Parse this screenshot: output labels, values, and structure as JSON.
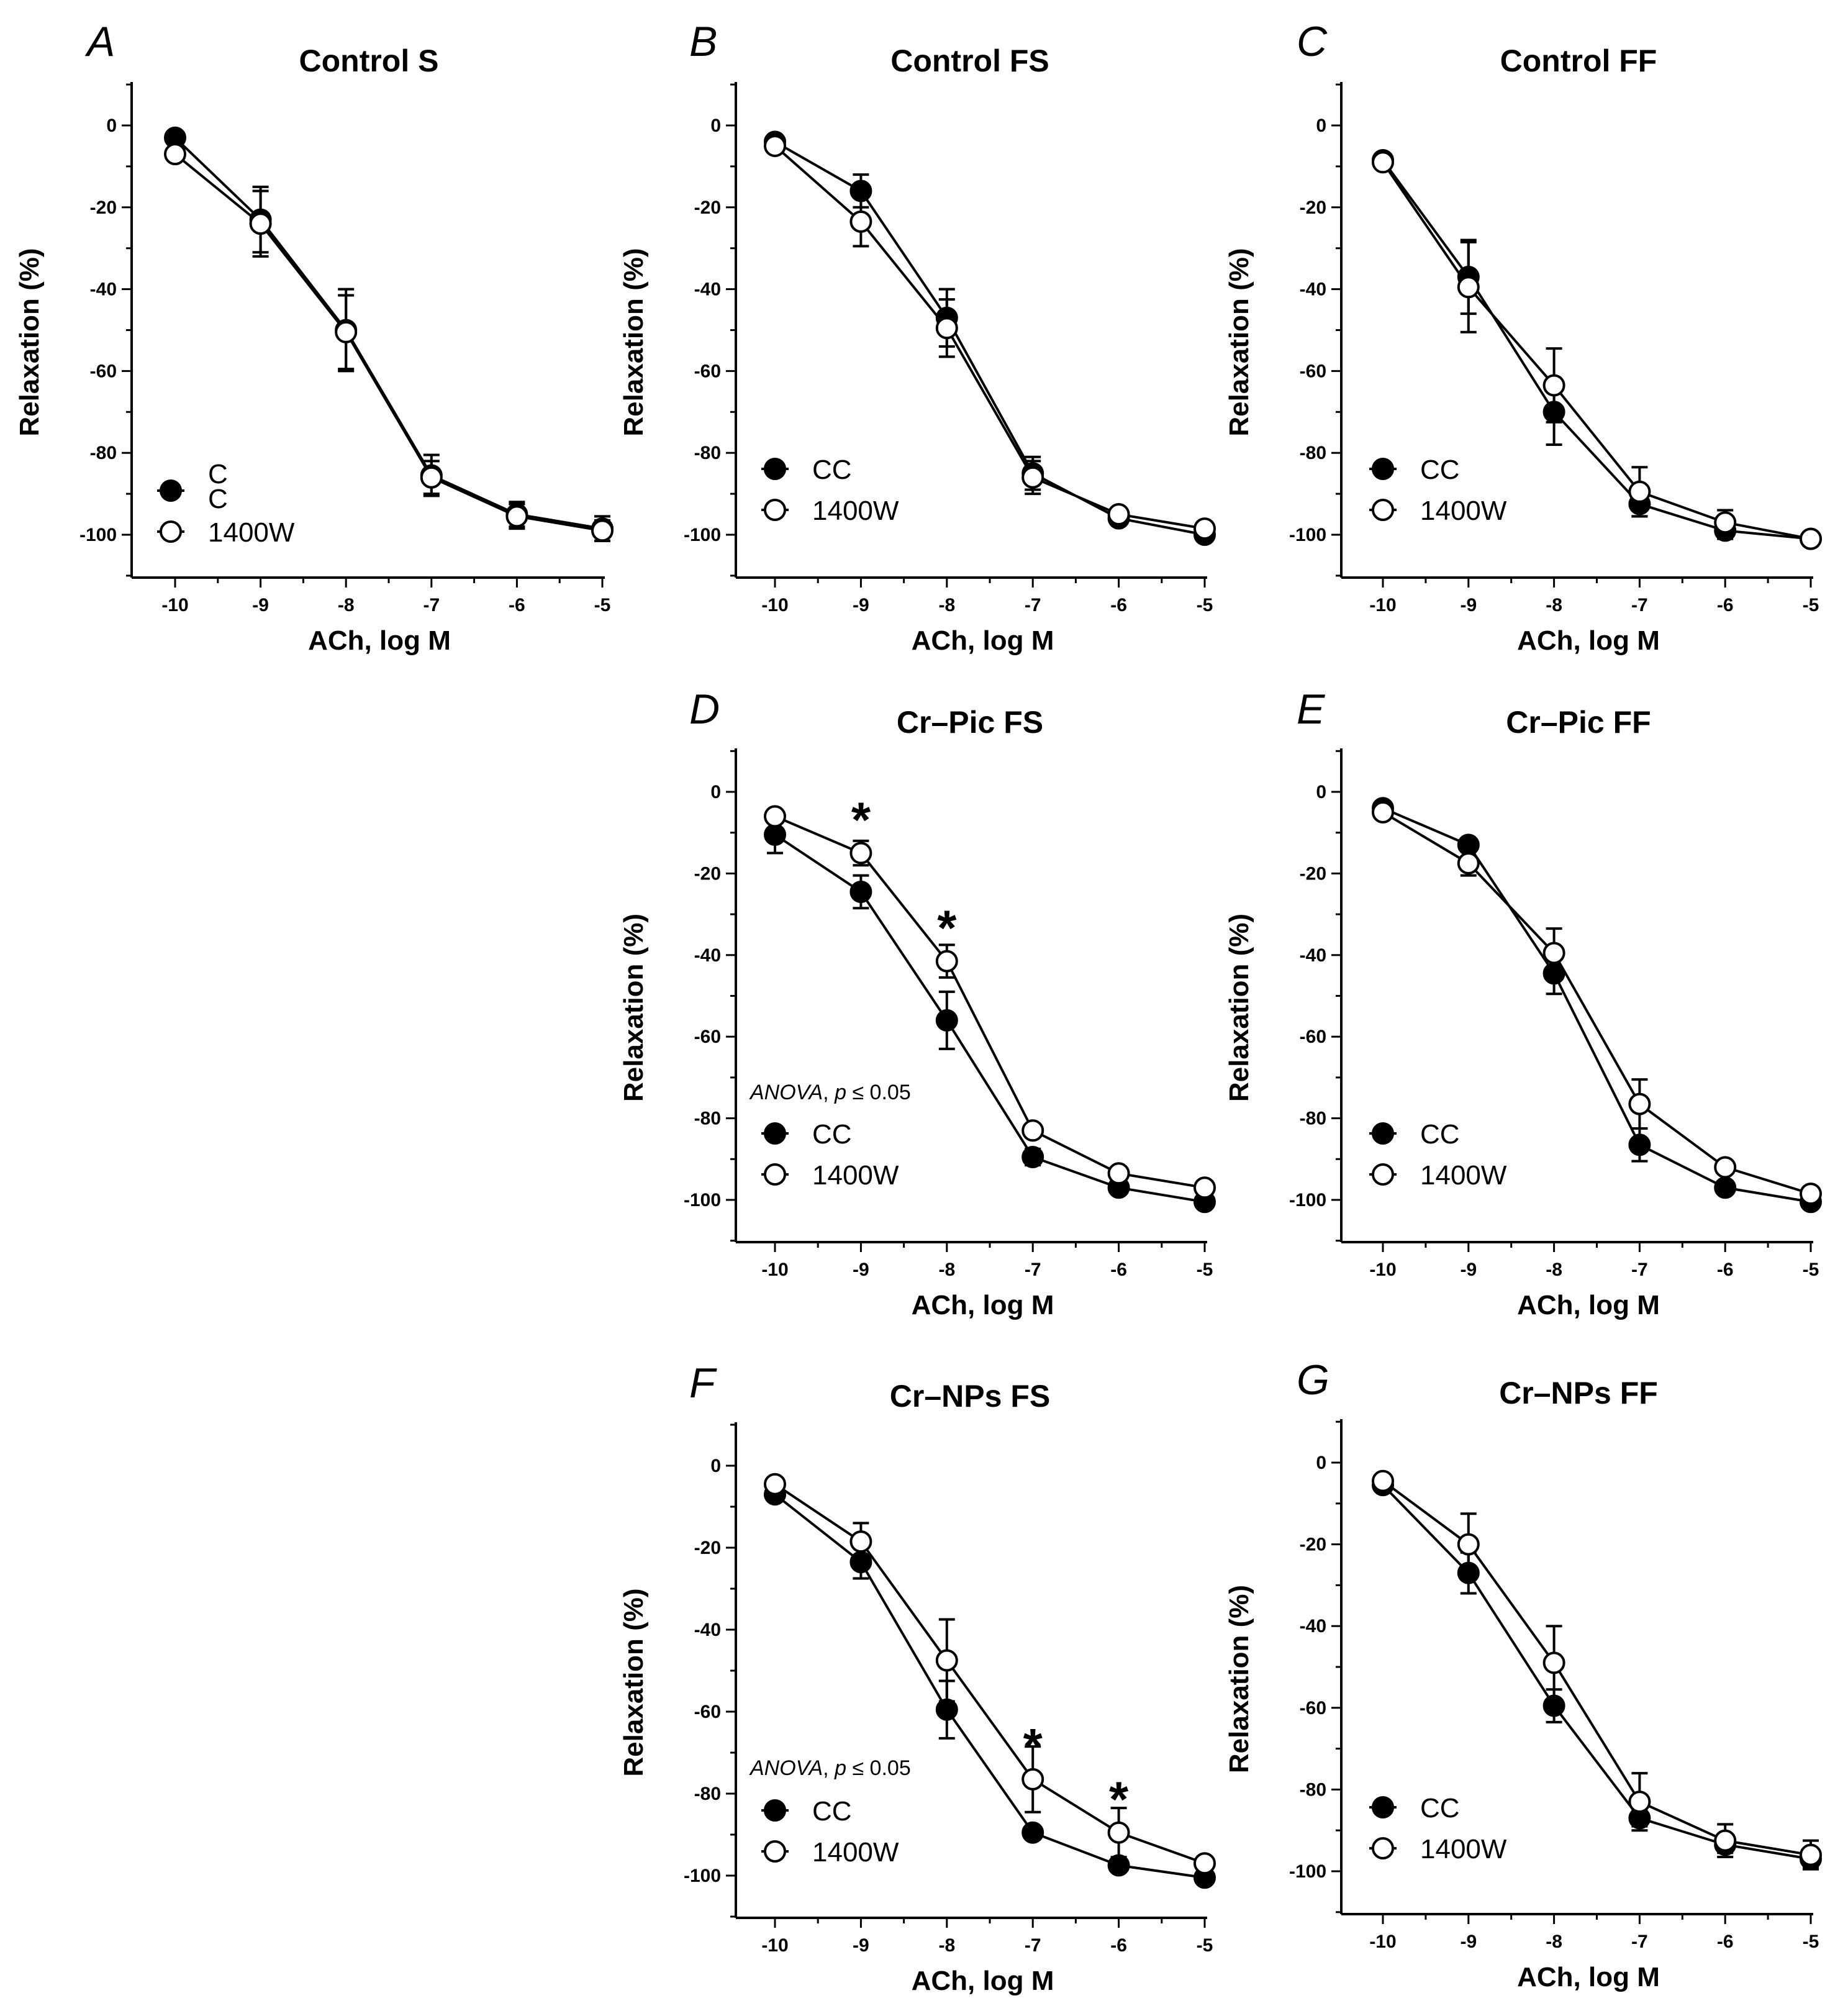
{
  "figure": {
    "colors": {
      "ink": "#000000",
      "open_fill": "#ffffff"
    }
  },
  "chart_data": [
    {
      "id": "A",
      "letter": "A",
      "title": "Control S",
      "type": "line",
      "xlabel": "ACh, log M",
      "ylabel": "Relaxation (%)",
      "x": [
        -10,
        -9,
        -8,
        -7,
        -6,
        -5
      ],
      "xticks": [
        "-10",
        "-9",
        "-8",
        "-7",
        "-6",
        "-5"
      ],
      "yticks": [
        "0",
        "-20",
        "-40",
        "-60",
        "-80",
        "-100"
      ],
      "ylim": [
        -110,
        10
      ],
      "series": [
        {
          "name": "C\nC",
          "label_lines": [
            "C",
            "C"
          ],
          "marker": "filled",
          "values": [
            -3,
            -23,
            -50,
            -85.5,
            -95,
            -98.5
          ],
          "error": [
            0,
            8,
            10,
            5,
            3,
            3
          ]
        },
        {
          "name": "1400W",
          "marker": "open",
          "values": [
            -7,
            -24,
            -50.5,
            -86,
            -95.5,
            -99
          ],
          "error": [
            0,
            8,
            9,
            4,
            3,
            2.5
          ]
        }
      ],
      "legend_position": "bottom-left"
    },
    {
      "id": "B",
      "letter": "B",
      "title": "Control FS",
      "type": "line",
      "xlabel": "ACh, log M",
      "ylabel": "Relaxation (%)",
      "x": [
        -10,
        -9,
        -8,
        -7,
        -6,
        -5
      ],
      "xticks": [
        "-10",
        "-9",
        "-8",
        "-7",
        "-6",
        "-5"
      ],
      "yticks": [
        "0",
        "-20",
        "-40",
        "-60",
        "-80",
        "-100"
      ],
      "ylim": [
        -110,
        10
      ],
      "series": [
        {
          "name": "CC",
          "marker": "filled",
          "values": [
            -4,
            -16,
            -47,
            -85,
            -96,
            -100
          ],
          "error": [
            0,
            4,
            7,
            4,
            1,
            1
          ]
        },
        {
          "name": "1400W",
          "marker": "open",
          "values": [
            -5,
            -23.5,
            -49.5,
            -86,
            -95,
            -98.5
          ],
          "error": [
            0,
            6,
            7,
            4,
            1.5,
            1.5
          ]
        }
      ],
      "legend_position": "bottom-left"
    },
    {
      "id": "C",
      "letter": "C",
      "title": "Control FF",
      "type": "line",
      "xlabel": "ACh, log M",
      "ylabel": "Relaxation (%)",
      "x": [
        -10,
        -9,
        -8,
        -7,
        -6,
        -5
      ],
      "xticks": [
        "-10",
        "-9",
        "-8",
        "-7",
        "-6",
        "-5"
      ],
      "yticks": [
        "0",
        "-20",
        "-40",
        "-60",
        "-80",
        "-100"
      ],
      "ylim": [
        -110,
        10
      ],
      "series": [
        {
          "name": "CC",
          "marker": "filled",
          "values": [
            -8.5,
            -37,
            -70,
            -92.5,
            -99,
            -101
          ],
          "error": [
            0,
            9,
            8,
            3,
            2,
            1
          ]
        },
        {
          "name": "1400W",
          "marker": "open",
          "values": [
            -9,
            -39.5,
            -63.5,
            -89.5,
            -97,
            -101
          ],
          "error": [
            0,
            11,
            9,
            6,
            3,
            1
          ]
        }
      ],
      "legend_position": "bottom-left"
    },
    {
      "id": "D",
      "letter": "D",
      "title": "Cr–Pic FS",
      "type": "line",
      "xlabel": "ACh, log M",
      "ylabel": "Relaxation (%)",
      "x": [
        -10,
        -9,
        -8,
        -7,
        -6,
        -5
      ],
      "xticks": [
        "-10",
        "-9",
        "-8",
        "-7",
        "-6",
        "-5"
      ],
      "yticks": [
        "0",
        "-20",
        "-40",
        "-60",
        "-80",
        "-100"
      ],
      "ylim": [
        -110,
        10
      ],
      "anova": {
        "test": "ANOVA",
        "sep": ", ",
        "p": "p",
        "rest": " ≤ 0.05"
      },
      "stars": [
        {
          "x": -9,
          "y": -15,
          "text": "*"
        },
        {
          "x": -8,
          "y": -41.5,
          "text": "*"
        }
      ],
      "series": [
        {
          "name": "CC",
          "marker": "filled",
          "values": [
            -10.5,
            -24.5,
            -56,
            -89.5,
            -97,
            -100.5
          ],
          "error": [
            4.5,
            4,
            7,
            2,
            1,
            1
          ]
        },
        {
          "name": "1400W",
          "marker": "open",
          "values": [
            -6,
            -15,
            -41.5,
            -83,
            -93.5,
            -97
          ],
          "error": [
            0,
            3,
            4,
            0,
            1,
            1
          ]
        }
      ],
      "legend_position": "bottom-left"
    },
    {
      "id": "E",
      "letter": "E",
      "title": "Cr–Pic FF",
      "type": "line",
      "xlabel": "ACh, log M",
      "ylabel": "Relaxation (%)",
      "x": [
        -10,
        -9,
        -8,
        -7,
        -6,
        -5
      ],
      "xticks": [
        "-10",
        "-9",
        "-8",
        "-7",
        "-6",
        "-5"
      ],
      "yticks": [
        "0",
        "-20",
        "-40",
        "-60",
        "-80",
        "-100"
      ],
      "ylim": [
        -110,
        10
      ],
      "series": [
        {
          "name": "CC",
          "marker": "filled",
          "values": [
            -4,
            -13,
            -44.5,
            -86.5,
            -97,
            -100.5
          ],
          "error": [
            0,
            1,
            5,
            4,
            1,
            1
          ]
        },
        {
          "name": "1400W",
          "marker": "open",
          "values": [
            -5,
            -17.5,
            -39.5,
            -76.5,
            -92,
            -98.5
          ],
          "error": [
            0,
            3,
            6,
            6,
            1.5,
            1
          ]
        }
      ],
      "legend_position": "bottom-left"
    },
    {
      "id": "F",
      "letter": "F",
      "title": "Cr–NPs FS",
      "type": "line",
      "xlabel": "ACh, log M",
      "ylabel": "Relaxation (%)",
      "x": [
        -10,
        -9,
        -8,
        -7,
        -6,
        -5
      ],
      "xticks": [
        "-10",
        "-9",
        "-8",
        "-7",
        "-6",
        "-5"
      ],
      "yticks": [
        "0",
        "-20",
        "-40",
        "-60",
        "-80",
        "-100"
      ],
      "ylim": [
        -110,
        10
      ],
      "anova": {
        "test": "ANOVA",
        "sep": ", ",
        "p": "p",
        "rest": " ≤ 0.05"
      },
      "stars": [
        {
          "x": -7,
          "y": -76.5,
          "text": "*"
        },
        {
          "x": -6,
          "y": -89.5,
          "text": "*"
        }
      ],
      "series": [
        {
          "name": "CC",
          "marker": "filled",
          "values": [
            -7,
            -23.5,
            -59.5,
            -89.5,
            -97.5,
            -100.5
          ],
          "error": [
            0,
            4,
            7,
            1,
            1,
            1
          ]
        },
        {
          "name": "1400W",
          "marker": "open",
          "values": [
            -4.5,
            -18.5,
            -47.5,
            -76.5,
            -89.5,
            -97
          ],
          "error": [
            0,
            4.5,
            10,
            8,
            6,
            1
          ]
        }
      ],
      "legend_position": "bottom-left"
    },
    {
      "id": "G",
      "letter": "G",
      "title": "Cr–NPs FF",
      "type": "line",
      "xlabel": "ACh, log M",
      "ylabel": "Relaxation (%)",
      "x": [
        -10,
        -9,
        -8,
        -7,
        -6,
        -5
      ],
      "xticks": [
        "-10",
        "-9",
        "-8",
        "-7",
        "-6",
        "-5"
      ],
      "yticks": [
        "0",
        "-20",
        "-40",
        "-60",
        "-80",
        "-100"
      ],
      "ylim": [
        -110,
        10
      ],
      "series": [
        {
          "name": "CC",
          "marker": "filled",
          "values": [
            -5.5,
            -27,
            -59.5,
            -87,
            -93.5,
            -97
          ],
          "error": [
            0,
            5,
            4,
            2,
            2,
            2
          ]
        },
        {
          "name": "1400W",
          "marker": "open",
          "values": [
            -4.5,
            -20,
            -49,
            -83,
            -92.5,
            -96
          ],
          "error": [
            0,
            7.5,
            9,
            7,
            4,
            3.5
          ]
        }
      ],
      "legend_position": "bottom-left"
    }
  ]
}
